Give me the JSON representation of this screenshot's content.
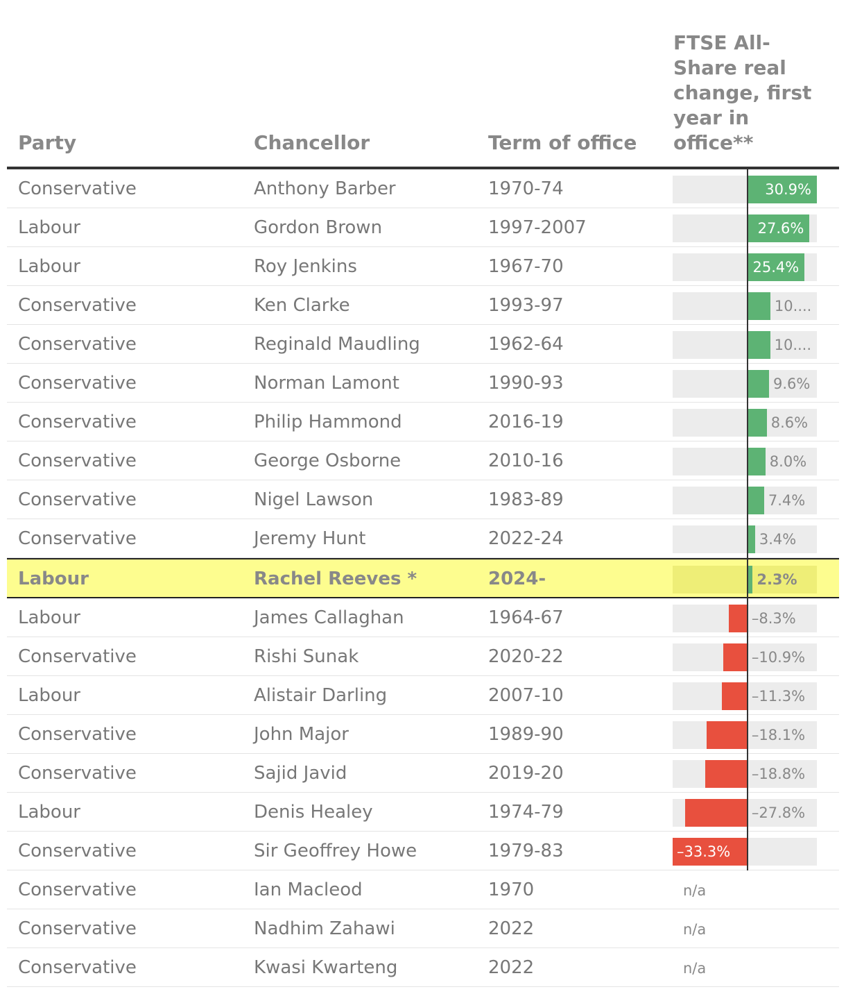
{
  "colors": {
    "positive": "#5db374",
    "negative": "#e8503e",
    "highlight": "#fdfd8f"
  },
  "headers": {
    "party": "Party",
    "chancellor": "Chancellor",
    "term": "Term of office",
    "metric": "FTSE All-\nShare real\nchange, first\nyear in\noffice**"
  },
  "chart_data": {
    "type": "table",
    "xlim": [
      -33.3,
      30.9
    ],
    "columns": [
      "Party",
      "Chancellor",
      "Term of office",
      "FTSE All-Share real change, first year in office**"
    ],
    "rows": [
      {
        "party": "Conservative",
        "chancellor": "Anthony Barber",
        "term": "1970-74",
        "value": 30.9,
        "label": "30.9%"
      },
      {
        "party": "Labour",
        "chancellor": "Gordon Brown",
        "term": "1997-2007",
        "value": 27.6,
        "label": "27.6%"
      },
      {
        "party": "Labour",
        "chancellor": "Roy Jenkins",
        "term": "1967-70",
        "value": 25.4,
        "label": "25.4%"
      },
      {
        "party": "Conservative",
        "chancellor": "Ken Clarke",
        "term": "1993-97",
        "value": 10.2,
        "label": "10...."
      },
      {
        "party": "Conservative",
        "chancellor": "Reginald Maudling",
        "term": "1962-64",
        "value": 10.1,
        "label": "10...."
      },
      {
        "party": "Conservative",
        "chancellor": "Norman Lamont",
        "term": "1990-93",
        "value": 9.6,
        "label": "9.6%"
      },
      {
        "party": "Conservative",
        "chancellor": "Philip Hammond",
        "term": "2016-19",
        "value": 8.6,
        "label": "8.6%"
      },
      {
        "party": "Conservative",
        "chancellor": "George Osborne",
        "term": "2010-16",
        "value": 8.0,
        "label": "8.0%"
      },
      {
        "party": "Conservative",
        "chancellor": "Nigel Lawson",
        "term": "1983-89",
        "value": 7.4,
        "label": "7.4%"
      },
      {
        "party": "Conservative",
        "chancellor": "Jeremy Hunt",
        "term": "2022-24",
        "value": 3.4,
        "label": "3.4%"
      },
      {
        "party": "Labour",
        "chancellor": "Rachel Reeves *",
        "term": "2024-",
        "value": 2.3,
        "label": "2.3%",
        "highlight": true
      },
      {
        "party": "Labour",
        "chancellor": "James Callaghan",
        "term": "1964-67",
        "value": -8.3,
        "label": "–8.3%"
      },
      {
        "party": "Conservative",
        "chancellor": "Rishi Sunak",
        "term": "2020-22",
        "value": -10.9,
        "label": "–10.9%"
      },
      {
        "party": "Labour",
        "chancellor": "Alistair Darling",
        "term": "2007-10",
        "value": -11.3,
        "label": "–11.3%"
      },
      {
        "party": "Conservative",
        "chancellor": "John Major",
        "term": "1989-90",
        "value": -18.1,
        "label": "–18.1%"
      },
      {
        "party": "Conservative",
        "chancellor": "Sajid Javid",
        "term": "2019-20",
        "value": -18.8,
        "label": "–18.8%"
      },
      {
        "party": "Labour",
        "chancellor": "Denis Healey",
        "term": "1974-79",
        "value": -27.8,
        "label": "–27.8%"
      },
      {
        "party": "Conservative",
        "chancellor": "Sir Geoffrey Howe",
        "term": "1979-83",
        "value": -33.3,
        "label": "–33.3%"
      },
      {
        "party": "Conservative",
        "chancellor": "Ian Macleod",
        "term": "1970",
        "value": null,
        "label": "n/a"
      },
      {
        "party": "Conservative",
        "chancellor": "Nadhim Zahawi",
        "term": "2022",
        "value": null,
        "label": "n/a"
      },
      {
        "party": "Conservative",
        "chancellor": "Kwasi Kwarteng",
        "term": "2022",
        "value": null,
        "label": "n/a"
      }
    ]
  }
}
